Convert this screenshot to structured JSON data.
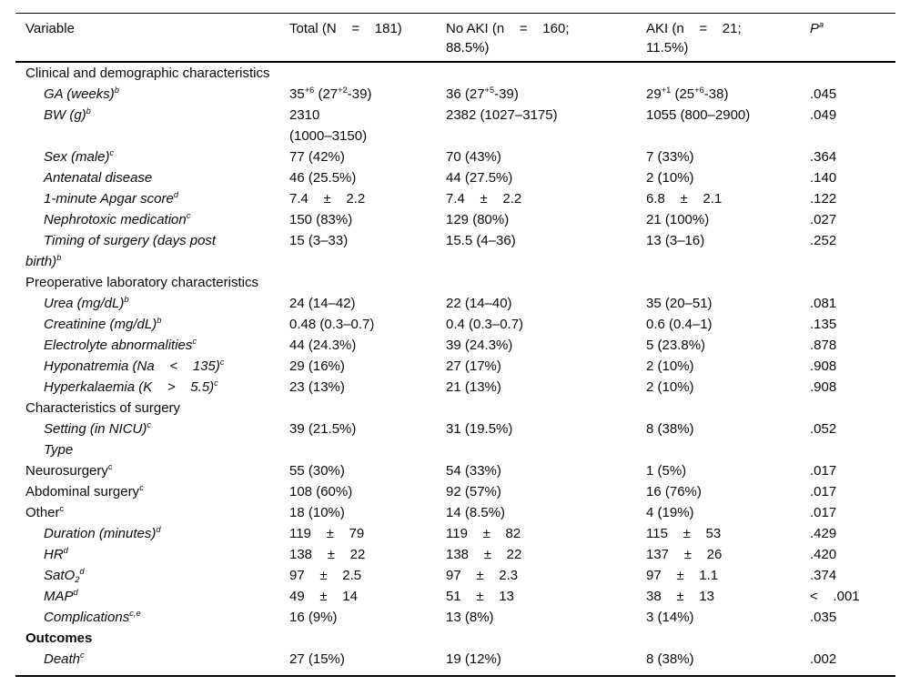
{
  "table": {
    "columns": [
      {
        "label": "Variable"
      },
      {
        "label": "Total (N    =    181)"
      },
      {
        "label": "No AKI (n    =    160;\n88.5%)"
      },
      {
        "label": "AKI (n    =    21;\n11.5%)"
      },
      {
        "label": "P^{a}"
      }
    ],
    "rows": [
      {
        "variant": "section",
        "label": "Clinical and demographic characteristics"
      },
      {
        "variant": "item",
        "label": "GA (weeks)^{b}",
        "total": "35^{+6} (27^{+2}-39)",
        "noaki": "36 (27^{+5}-39)",
        "aki": "29^{+1} (25^{+6}-38)",
        "p": ".045"
      },
      {
        "variant": "item",
        "label": "BW (g)^{b}",
        "total": "2310\n(1000–3150)",
        "noaki": "2382 (1027–3175)",
        "aki": "1055 (800–2900)",
        "p": ".049"
      },
      {
        "variant": "item",
        "label": "Sex (male)^{c}",
        "total": "77 (42%)",
        "noaki": "70 (43%)",
        "aki": "7 (33%)",
        "p": ".364"
      },
      {
        "variant": "item",
        "label": "Antenatal disease",
        "total": "46 (25.5%)",
        "noaki": "44 (27.5%)",
        "aki": "2 (10%)",
        "p": ".140"
      },
      {
        "variant": "item",
        "label": "1-minute Apgar score^{d}",
        "total": "7.4    ±    2.2",
        "noaki": "7.4    ±    2.2",
        "aki": "6.8    ±    2.1",
        "p": ".122"
      },
      {
        "variant": "item",
        "label": "Nephrotoxic medication^{c}",
        "total": "150 (83%)",
        "noaki": "129 (80%)",
        "aki": "21 (100%)",
        "p": ".027"
      },
      {
        "variant": "item",
        "label": "Timing of surgery (days post\nbirth)^{b}",
        "total": "15 (3–33)",
        "noaki": "15.5 (4–36)",
        "aki": "13 (3–16)",
        "p": ".252"
      },
      {
        "variant": "section",
        "label": "Preoperative laboratory characteristics"
      },
      {
        "variant": "item",
        "label": "Urea (mg/dL)^{b}",
        "total": "24 (14–42)",
        "noaki": "22 (14–40)",
        "aki": "35 (20–51)",
        "p": ".081"
      },
      {
        "variant": "item",
        "label": "Creatinine (mg/dL)^{b}",
        "total": "0.48 (0.3–0.7)",
        "noaki": "0.4 (0.3–0.7)",
        "aki": "0.6 (0.4–1)",
        "p": ".135"
      },
      {
        "variant": "item",
        "label": "Electrolyte abnormalities^{c}",
        "total": "44 (24.3%)",
        "noaki": "39 (24.3%)",
        "aki": "5 (23.8%)",
        "p": ".878"
      },
      {
        "variant": "item",
        "label": "Hyponatremia (Na    <    135)^{c}",
        "total": "29 (16%)",
        "noaki": "27 (17%)",
        "aki": "2 (10%)",
        "p": ".908"
      },
      {
        "variant": "item",
        "label": "Hyperkalaemia (K    >    5.5)^{c}",
        "total": "23 (13%)",
        "noaki": "21 (13%)",
        "aki": "2 (10%)",
        "p": ".908"
      },
      {
        "variant": "section",
        "label": "Characteristics of surgery"
      },
      {
        "variant": "item",
        "label": "Setting (in NICU)^{c}",
        "total": "39 (21.5%)",
        "noaki": "31 (19.5%)",
        "aki": "8 (38%)",
        "p": ".052"
      },
      {
        "variant": "item",
        "label": "Type"
      },
      {
        "variant": "item-plain",
        "label": "Neurosurgery^{c}",
        "total": "55 (30%)",
        "noaki": "54 (33%)",
        "aki": "1 (5%)",
        "p": ".017"
      },
      {
        "variant": "item-plain",
        "label": "Abdominal surgery^{c}",
        "total": "108 (60%)",
        "noaki": "92 (57%)",
        "aki": "16 (76%)",
        "p": ".017"
      },
      {
        "variant": "item-plain",
        "label": "Other^{c}",
        "total": "18 (10%)",
        "noaki": "14 (8.5%)",
        "aki": "4 (19%)",
        "p": ".017"
      },
      {
        "variant": "item",
        "label": "Duration (minutes)^{d}",
        "total": "119    ±    79",
        "noaki": "119    ±    82",
        "aki": "115    ±    53",
        "p": ".429"
      },
      {
        "variant": "item",
        "label": "HR^{d}",
        "total": "138    ±    22",
        "noaki": "138    ±    22",
        "aki": "137    ±    26",
        "p": ".420"
      },
      {
        "variant": "item",
        "label": "SatO_{2}^{d}",
        "total": "97    ±    2.5",
        "noaki": "97    ±    2.3",
        "aki": "97    ±    1.1",
        "p": ".374"
      },
      {
        "variant": "item",
        "label": "MAP^{d}",
        "total": "49    ±    14",
        "noaki": "51    ±    13",
        "aki": "38    ±    13",
        "p": "<    .001"
      },
      {
        "variant": "item",
        "label": "Complications^{c,e}",
        "total": "16 (9%)",
        "noaki": "13 (8%)",
        "aki": "3 (14%)",
        "p": ".035"
      },
      {
        "variant": "section-bold",
        "label": "Outcomes"
      },
      {
        "variant": "item",
        "label": "Death^{c}",
        "total": "27 (15%)",
        "noaki": "19 (12%)",
        "aki": "8 (38%)",
        "p": ".002"
      }
    ]
  }
}
